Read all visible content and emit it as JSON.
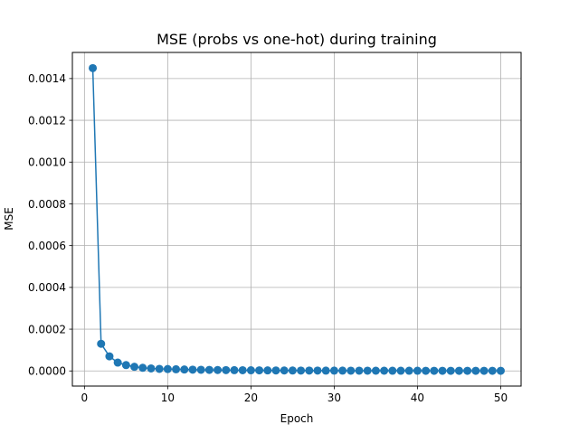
{
  "chart_data": {
    "type": "line",
    "title": "MSE (probs vs one-hot) during training",
    "xlabel": "Epoch",
    "ylabel": "MSE",
    "xlim": [
      -1.45,
      52.45
    ],
    "ylim": [
      -7.25e-05,
      0.001525
    ],
    "xticks": [
      0,
      10,
      20,
      30,
      40,
      50
    ],
    "xtick_labels": [
      "0",
      "10",
      "20",
      "30",
      "40",
      "50"
    ],
    "yticks": [
      0.0,
      0.0002,
      0.0004,
      0.0006,
      0.0008,
      0.001,
      0.0012,
      0.0014
    ],
    "ytick_labels": [
      "0.0000",
      "0.0002",
      "0.0004",
      "0.0006",
      "0.0008",
      "0.0010",
      "0.0012",
      "0.0014"
    ],
    "grid": true,
    "markers": "circle",
    "color": "#1f77b4",
    "series": [
      {
        "x": [
          1,
          2,
          3,
          4,
          5,
          6,
          7,
          8,
          9,
          10,
          11,
          12,
          13,
          14,
          15,
          16,
          17,
          18,
          19,
          20,
          21,
          22,
          23,
          24,
          25,
          26,
          27,
          28,
          29,
          30,
          31,
          32,
          33,
          34,
          35,
          36,
          37,
          38,
          39,
          40,
          41,
          42,
          43,
          44,
          45,
          46,
          47,
          48,
          49,
          50
        ],
        "y": [
          0.00145,
          0.00013,
          7e-05,
          4e-05,
          2.8e-05,
          2e-05,
          1.5e-05,
          1.2e-05,
          1e-05,
          9e-06,
          8e-06,
          7e-06,
          6.2e-06,
          5.6e-06,
          5e-06,
          4.5e-06,
          4e-06,
          3.6e-06,
          3.3e-06,
          3e-06,
          2.8e-06,
          2.6e-06,
          2.4e-06,
          2.2e-06,
          2e-06,
          1.9e-06,
          1.8e-06,
          1.7e-06,
          1.6e-06,
          1.5e-06,
          1.4e-06,
          1.3e-06,
          1.2e-06,
          1.2e-06,
          1.1e-06,
          1.1e-06,
          1e-06,
          1e-06,
          9e-07,
          9e-07,
          8e-07,
          8e-07,
          8e-07,
          7e-07,
          7e-07,
          7e-07,
          6e-07,
          6e-07,
          6e-07,
          6e-07
        ]
      }
    ]
  }
}
